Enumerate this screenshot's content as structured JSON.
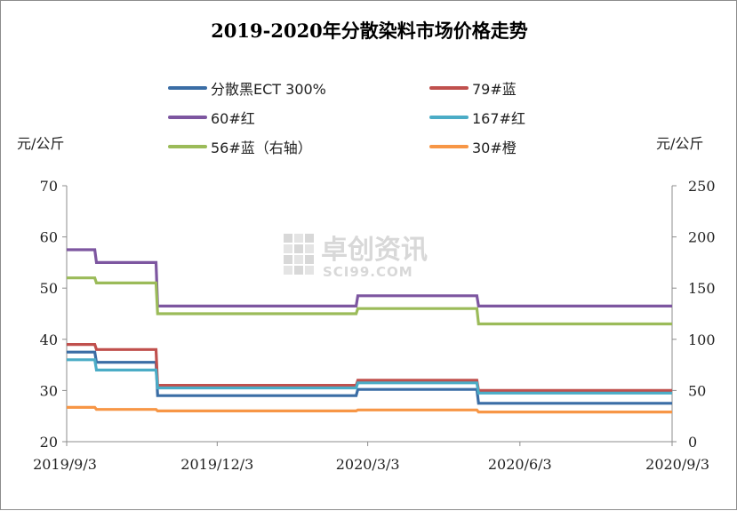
{
  "colors": {
    "black": "#3a6da5",
    "blue79": "#c0504d",
    "red60": "#7d56a0",
    "red167": "#4bacc6",
    "blue56": "#9bbb59",
    "orange30": "#f79646"
  },
  "watermark": {
    "brand": "卓创资讯",
    "site": "SCI99.COM"
  },
  "chart_data": {
    "type": "line",
    "title": "2019-2020年分散染料市场价格走势",
    "ylabel_left": "元/公斤",
    "ylabel_right": "元/公斤",
    "ylim_left": [
      20,
      70
    ],
    "ylim_right": [
      0,
      250
    ],
    "yticks_left": [
      "70",
      "60",
      "50",
      "40",
      "30",
      "20"
    ],
    "yticks_right": [
      "250",
      "200",
      "150",
      "100",
      "50",
      "0"
    ],
    "xlim": [
      "2019/9/3",
      "2020/9/3"
    ],
    "xticks": [
      "2019/9/3",
      "2019/12/3",
      "2020/3/3",
      "2020/6/3",
      "2020/9/3"
    ],
    "grid": false,
    "legend_position": "top",
    "series": [
      {
        "name": "分散黑ECT 300%",
        "axis": "left",
        "color_key": "black",
        "x": [
          "2019/9/3",
          "2019/9/20",
          "2019/9/21",
          "2019/10/27",
          "2019/10/28",
          "2020/2/25",
          "2020/2/26",
          "2020/5/8",
          "2020/5/9",
          "2020/9/3"
        ],
        "y": [
          37.5,
          37.5,
          35.5,
          35.5,
          29,
          29,
          30.2,
          30.2,
          27.5,
          27.5
        ]
      },
      {
        "name": "79#蓝",
        "axis": "left",
        "color_key": "blue79",
        "x": [
          "2019/9/3",
          "2019/9/20",
          "2019/9/21",
          "2019/10/27",
          "2019/10/28",
          "2020/2/25",
          "2020/2/26",
          "2020/5/8",
          "2020/5/9",
          "2020/9/3"
        ],
        "y": [
          39,
          39,
          38,
          38,
          31,
          31,
          32,
          32,
          30,
          30
        ]
      },
      {
        "name": "60#红",
        "axis": "left",
        "color_key": "red60",
        "x": [
          "2019/9/3",
          "2019/9/20",
          "2019/9/21",
          "2019/10/27",
          "2019/10/28",
          "2020/2/25",
          "2020/2/26",
          "2020/5/8",
          "2020/5/9",
          "2020/9/3"
        ],
        "y": [
          57.5,
          57.5,
          55,
          55,
          46.5,
          46.5,
          48.5,
          48.5,
          46.5,
          46.5
        ]
      },
      {
        "name": "167#红",
        "axis": "left",
        "color_key": "red167",
        "x": [
          "2019/9/3",
          "2019/9/20",
          "2019/9/21",
          "2019/10/27",
          "2019/10/28",
          "2020/2/25",
          "2020/2/26",
          "2020/5/8",
          "2020/5/9",
          "2020/9/3"
        ],
        "y": [
          36,
          36,
          34,
          34,
          30.5,
          30.5,
          31.5,
          31.5,
          29.5,
          29.5
        ]
      },
      {
        "name": "56#蓝（右轴）",
        "axis": "right",
        "color_key": "blue56",
        "x": [
          "2019/9/3",
          "2019/9/20",
          "2019/9/21",
          "2019/10/27",
          "2019/10/28",
          "2020/2/25",
          "2020/2/26",
          "2020/5/8",
          "2020/5/9",
          "2020/9/3"
        ],
        "y": [
          160,
          160,
          155,
          155,
          125,
          125,
          130,
          130,
          115,
          115
        ]
      },
      {
        "name": "30#橙",
        "axis": "left",
        "color_key": "orange30",
        "x": [
          "2019/9/3",
          "2019/9/20",
          "2019/9/21",
          "2019/10/27",
          "2019/10/28",
          "2020/2/25",
          "2020/2/26",
          "2020/5/8",
          "2020/5/9",
          "2020/9/3"
        ],
        "y": [
          26.7,
          26.7,
          26.3,
          26.3,
          26,
          26,
          26.2,
          26.2,
          25.8,
          25.8
        ]
      }
    ]
  }
}
